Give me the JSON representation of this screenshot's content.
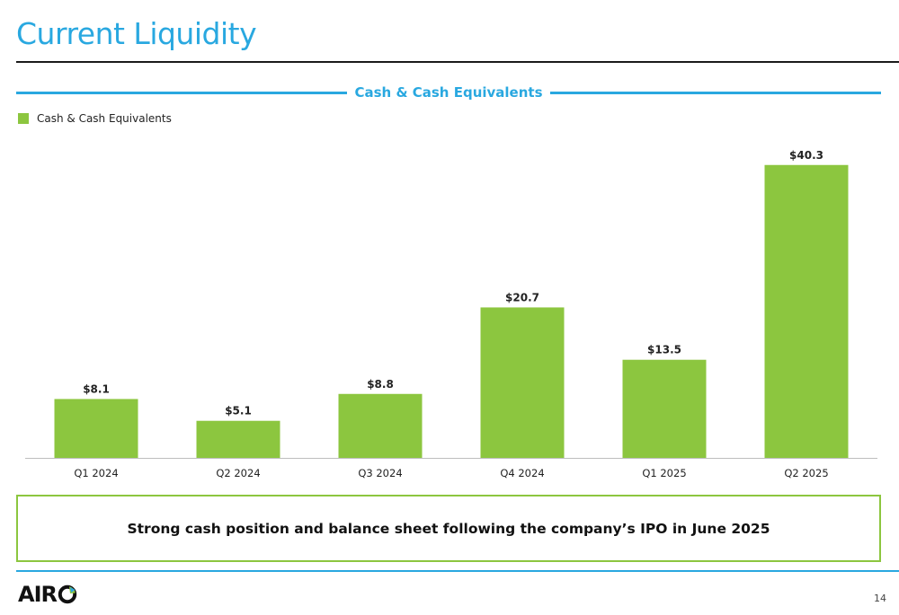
{
  "page": {
    "title": "Current Liquidity",
    "section_title": "Cash & Cash Equivalents",
    "callout": "Strong cash position and balance sheet following the company’s IPO in June 2025",
    "page_number": "14",
    "logo_text": "AIR",
    "logo_icon": "airo-o-logo-icon"
  },
  "colors": {
    "accent": "#29a8e0",
    "bar": "#8cc63f",
    "text": "#222222"
  },
  "chart_data": {
    "type": "bar",
    "title": "",
    "xlabel": "",
    "ylabel": "",
    "legend_position": "top-left",
    "grid": false,
    "ylim": [
      0,
      42
    ],
    "categories": [
      "Q1 2024",
      "Q2 2024",
      "Q3 2024",
      "Q4 2024",
      "Q1 2025",
      "Q2 2025"
    ],
    "series": [
      {
        "name": "Cash & Cash Equivalents",
        "values": [
          8.1,
          5.1,
          8.8,
          20.7,
          13.5,
          40.3
        ],
        "labels": [
          "$8.1",
          "$5.1",
          "$8.8",
          "$20.7",
          "$13.5",
          "$40.3"
        ]
      }
    ]
  }
}
